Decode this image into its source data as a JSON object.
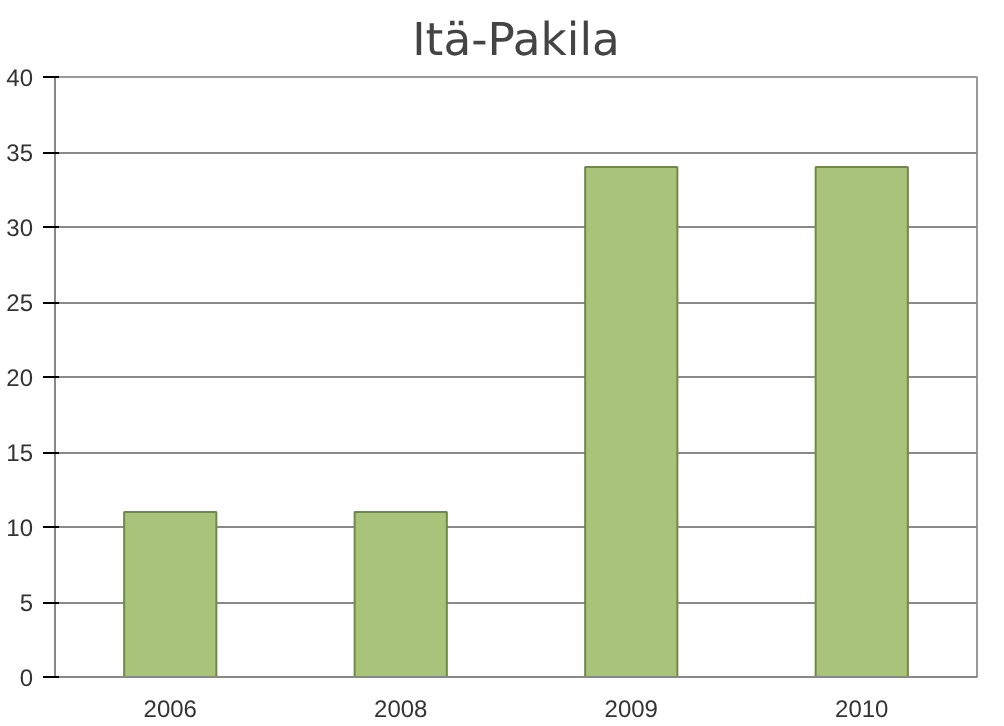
{
  "chart_data": {
    "type": "bar",
    "title": "Itä-Pakila",
    "categories": [
      "2006",
      "2008",
      "2009",
      "2010"
    ],
    "values": [
      11,
      11,
      34,
      34
    ],
    "color": "#a9c47a",
    "ylim": [
      0,
      40
    ],
    "yticks": [
      0,
      5,
      10,
      15,
      20,
      25,
      30,
      35,
      40
    ],
    "grid": "y"
  }
}
